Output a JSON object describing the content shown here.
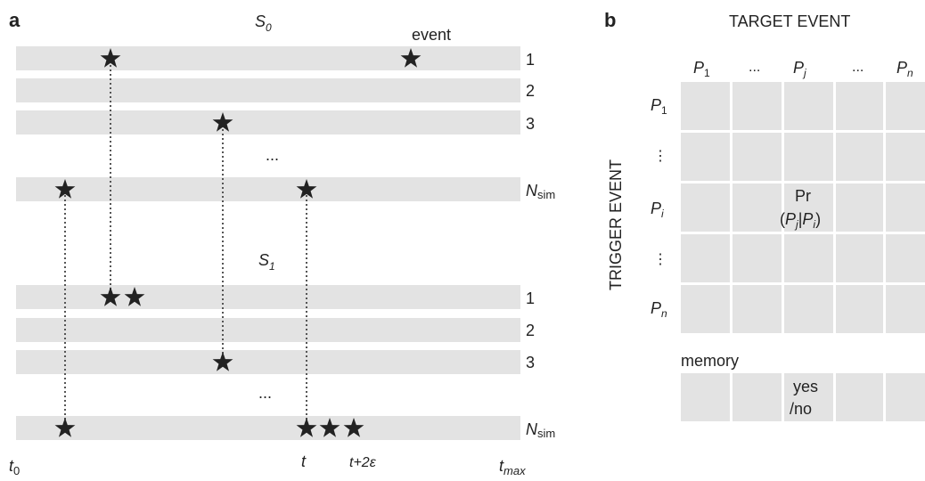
{
  "panel_a": {
    "label": "a",
    "section_top": {
      "name": "S",
      "sub": "0"
    },
    "section_bottom": {
      "name": "S",
      "sub": "1"
    },
    "event_label": "event",
    "row_labels": [
      "1",
      "2",
      "3",
      "N"
    ],
    "nsim_sub": "sim",
    "ellipsis": "...",
    "axis_labels": {
      "t0": {
        "main": "t",
        "sub": "0"
      },
      "t": "t",
      "t_plus": "t+2ε",
      "tmax": {
        "main": "t",
        "sub": "max"
      }
    }
  },
  "panel_b": {
    "label": "b",
    "target_title": "TARGET EVENT",
    "trigger_title": "TRIGGER EVENT",
    "col_headers": [
      {
        "main": "P",
        "sub": "1"
      },
      {
        "main": "...",
        "sub": ""
      },
      {
        "main": "P",
        "sub": "j"
      },
      {
        "main": "...",
        "sub": ""
      },
      {
        "main": "P",
        "sub": "n"
      }
    ],
    "row_headers": [
      {
        "main": "P",
        "sub": "1"
      },
      {
        "main": "⋮",
        "sub": ""
      },
      {
        "main": "P",
        "sub": "i"
      },
      {
        "main": "⋮",
        "sub": ""
      },
      {
        "main": "P",
        "sub": "n"
      }
    ],
    "cell_text": {
      "line1": "Pr",
      "line2_open": "(",
      "pj": "P",
      "pj_sub": "j",
      "bar": "|",
      "pi": "P",
      "pi_sub": "i",
      "line2_close": ")"
    },
    "memory_label": "memory",
    "memory_cell": {
      "line1": "yes",
      "line2": "/no"
    }
  },
  "colors": {
    "bar": "#e3e3e3",
    "cell": "#e3e3e3",
    "star": "#222222",
    "dots": "#555555"
  }
}
